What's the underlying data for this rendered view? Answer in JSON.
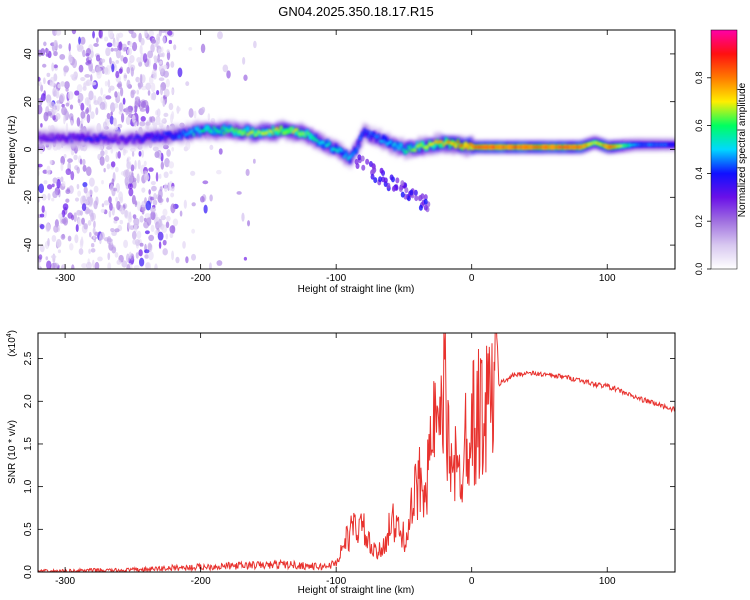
{
  "page_title": "GN04.2025.350.18.17.R15",
  "colors": {
    "line_red": "#e8322e",
    "colormap": [
      "#ffffff",
      "#d8c8f0",
      "#a070e0",
      "#6a10e8",
      "#1010ff",
      "#00d8ff",
      "#00ff60",
      "#ffee00",
      "#ff7a00",
      "#ff1010",
      "#ff00a8"
    ]
  },
  "chart_data": [
    {
      "type": "heatmap",
      "title": "GN04.2025.350.18.17.R15",
      "xlabel": "Height of straight line (km)",
      "ylabel": "Frequency (Hz)",
      "xlim": [
        -320,
        150
      ],
      "ylim": [
        -50,
        50
      ],
      "xticks": [
        -300,
        -200,
        -100,
        0,
        100
      ],
      "yticks": [
        -40,
        -20,
        0,
        20,
        40
      ],
      "colorbar": {
        "label": "Normalized spectral amplitude",
        "range": [
          0,
          1
        ],
        "ticks": [
          "0.0",
          "0.2",
          "0.4",
          "0.6",
          "0.8"
        ]
      },
      "ridge": {
        "x": [
          -320,
          -300,
          -280,
          -260,
          -240,
          -220,
          -200,
          -180,
          -160,
          -140,
          -125,
          -115,
          -100,
          -90,
          -80,
          -70,
          -60,
          -50,
          -40,
          -30,
          -20,
          -10,
          0,
          40,
          80,
          90,
          100,
          120,
          150
        ],
        "center_hz": [
          5,
          4.5,
          5,
          4,
          5,
          6,
          8,
          8,
          7,
          8,
          7,
          4,
          0,
          -4,
          7,
          5,
          2,
          0,
          1,
          2,
          3,
          2,
          1,
          1,
          1,
          3,
          1,
          2,
          2
        ],
        "peak_amplitude": [
          0.35,
          0.35,
          0.4,
          0.35,
          0.4,
          0.45,
          0.6,
          0.65,
          0.7,
          0.75,
          0.7,
          0.6,
          0.55,
          0.55,
          0.45,
          0.5,
          0.55,
          0.6,
          0.7,
          0.75,
          0.8,
          0.85,
          0.9,
          0.92,
          0.9,
          0.7,
          0.9,
          0.5,
          0.45
        ]
      }
    },
    {
      "type": "line",
      "xlabel": "Height of straight line (km)",
      "ylabel": "SNR (10 * v/v)",
      "y_multiplier": "(x10",
      "y_exponent": "4",
      "xlim": [
        -320,
        150
      ],
      "ylim": [
        0,
        2.8
      ],
      "xticks": [
        -300,
        -200,
        -100,
        0,
        100
      ],
      "yticks": [
        "0.0",
        "0.5",
        "1.0",
        "1.5",
        "2.0",
        "2.5"
      ],
      "series": [
        {
          "x": [
            -320,
            -300,
            -280,
            -260,
            -240,
            -230,
            -220,
            -210,
            -200,
            -180,
            -160,
            -150,
            -140,
            -130,
            -120,
            -110,
            -100,
            -95,
            -90,
            -85,
            -80,
            -75,
            -70,
            -65,
            -60,
            -55,
            -50,
            -45,
            -40,
            -35,
            -30,
            -28,
            -25,
            -22,
            -20,
            -18,
            -15,
            -12,
            -10,
            -8,
            -5,
            -2,
            0,
            3,
            6,
            10,
            15,
            20,
            25,
            30,
            35,
            40,
            50,
            60,
            70,
            80,
            90,
            100,
            110,
            120,
            130,
            140,
            150
          ],
          "values": [
            0.01,
            0.01,
            0.02,
            0.02,
            0.03,
            0.04,
            0.05,
            0.05,
            0.06,
            0.07,
            0.08,
            0.08,
            0.09,
            0.08,
            0.07,
            0.06,
            0.1,
            0.3,
            0.45,
            0.55,
            0.5,
            0.3,
            0.2,
            0.3,
            0.6,
            0.5,
            0.4,
            0.65,
            1.0,
            1.15,
            1.3,
            1.8,
            1.5,
            1.65,
            1.8,
            1.6,
            1.5,
            1.25,
            1.0,
            1.2,
            1.6,
            1.75,
            1.8,
            1.75,
            1.9,
            1.9,
            2.1,
            2.2,
            2.25,
            2.3,
            2.32,
            2.33,
            2.32,
            2.3,
            2.28,
            2.25,
            2.2,
            2.18,
            2.12,
            2.05,
            2.0,
            1.95,
            1.9
          ]
        }
      ]
    }
  ]
}
